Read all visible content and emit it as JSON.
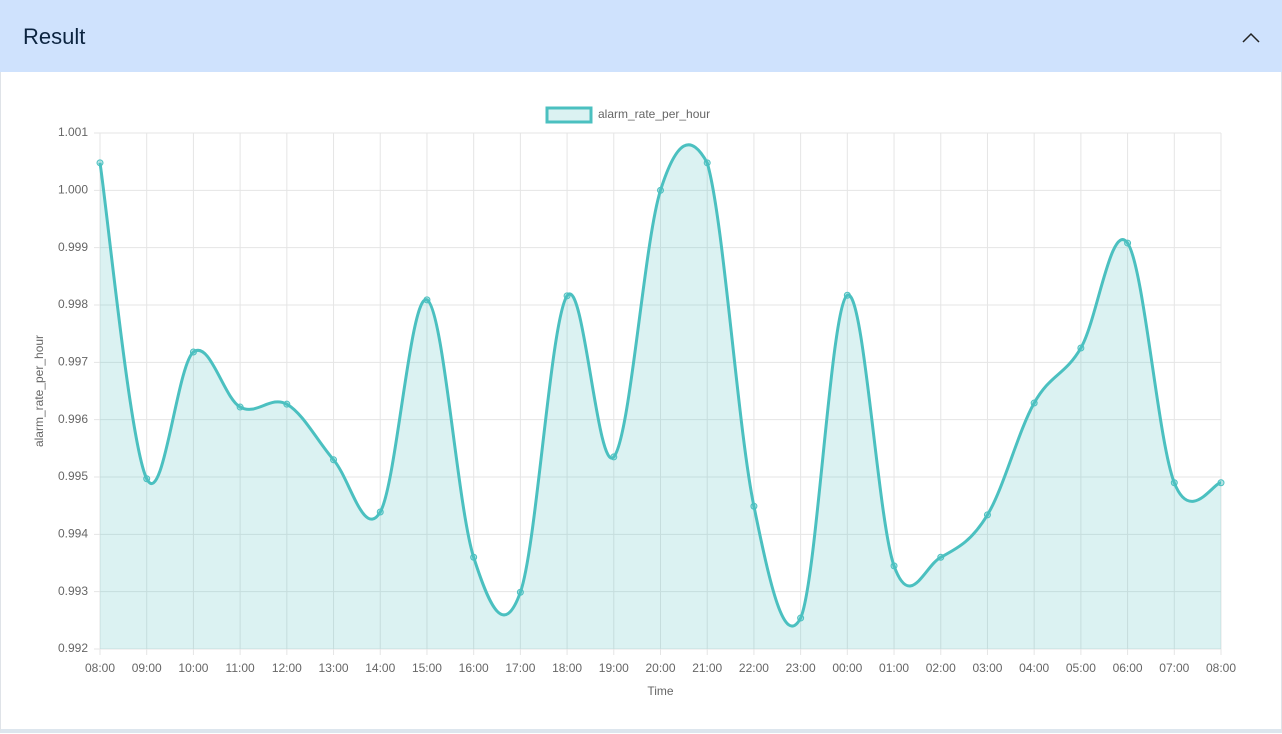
{
  "header": {
    "title": "Result"
  },
  "chart_data": {
    "type": "line",
    "x_label": "Time",
    "y_label": "alarm_rate_per_hour",
    "categories": [
      "08:00",
      "09:00",
      "10:00",
      "11:00",
      "12:00",
      "13:00",
      "14:00",
      "15:00",
      "16:00",
      "17:00",
      "18:00",
      "19:00",
      "20:00",
      "21:00",
      "22:00",
      "23:00",
      "00:00",
      "01:00",
      "02:00",
      "03:00",
      "04:00",
      "05:00",
      "06:00",
      "07:00",
      "08:00"
    ],
    "series": [
      {
        "name": "alarm_rate_per_hour",
        "color": "#4bc0c0",
        "values": [
          1.00048,
          0.99497,
          0.99718,
          0.99622,
          0.99627,
          0.9953,
          0.99439,
          0.99809,
          0.9936,
          0.99299,
          0.99816,
          0.99535,
          1.0,
          1.00048,
          0.99449,
          0.99254,
          0.99817,
          0.99345,
          0.9936,
          0.99434,
          0.99629,
          0.99725,
          0.99908,
          0.9949,
          0.9949
        ]
      }
    ],
    "ylim": [
      0.992,
      1.001
    ],
    "yticks": [
      0.992,
      0.993,
      0.994,
      0.995,
      0.996,
      0.997,
      0.998,
      0.999,
      {
        "value": 1.0,
        "label": "1.000"
      },
      1.001
    ],
    "grid": true,
    "fill": true,
    "legend": "top"
  }
}
